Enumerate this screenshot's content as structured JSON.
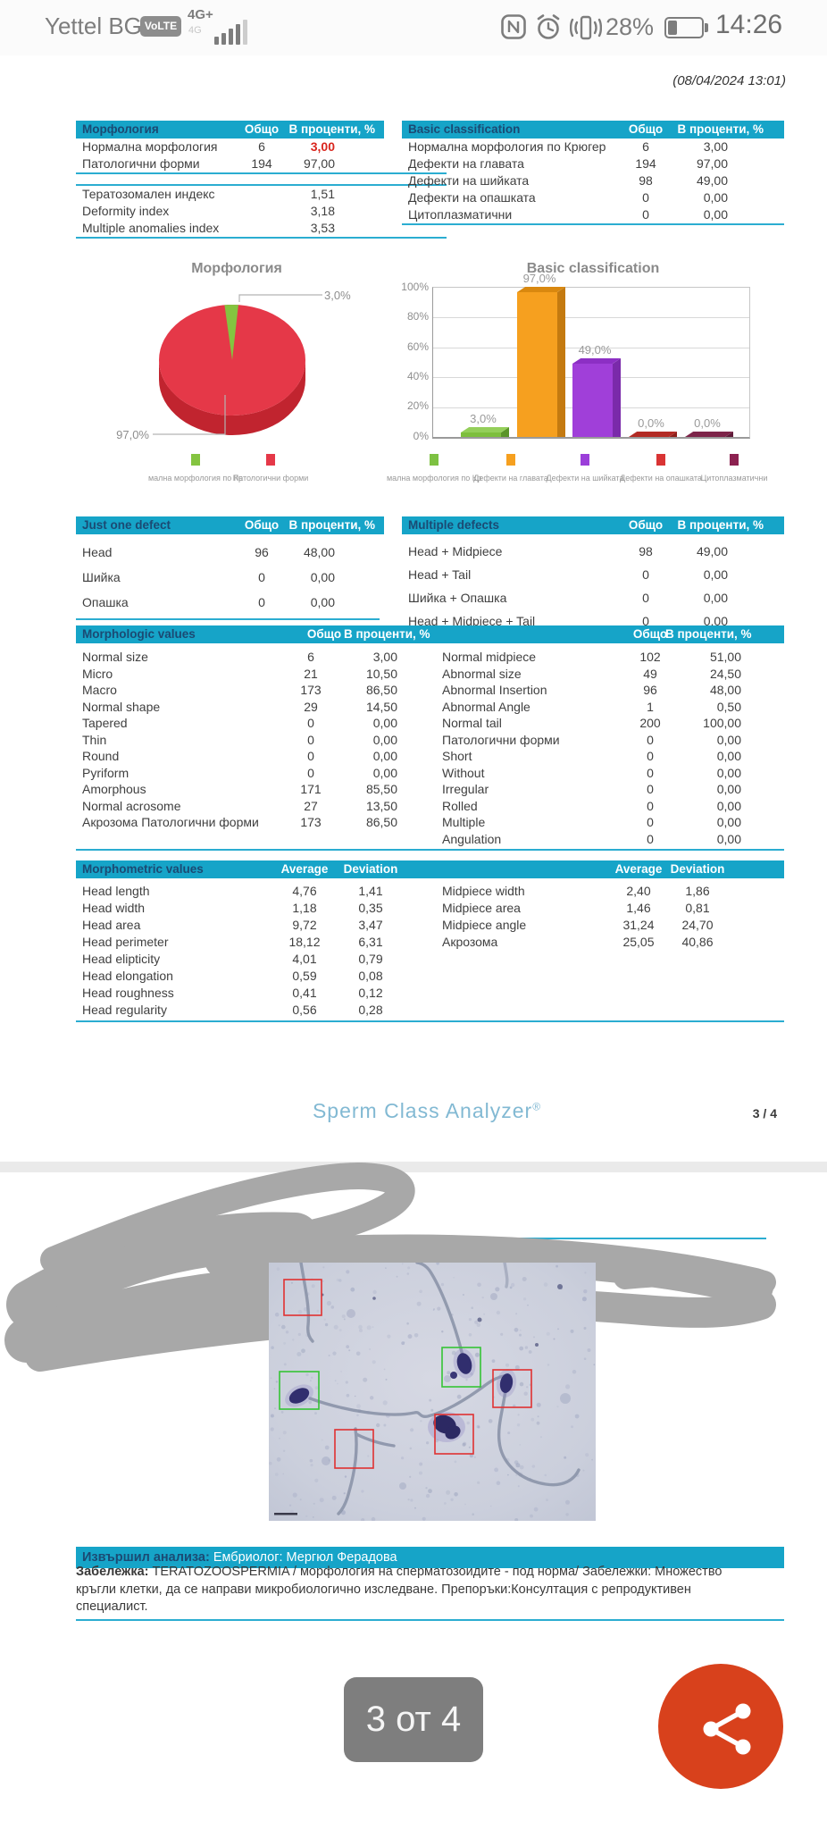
{
  "status_bar": {
    "carrier": "Yettel BG",
    "volte_badge": "VoLTE",
    "network": "4G+",
    "network_secondary": "4G",
    "battery_percent": "28%",
    "time": "14:26"
  },
  "report": {
    "datetime_stamp": "(08/04/2024  13:01)",
    "footer_brand": "Sperm Class Analyzer",
    "footer_reg": "®",
    "footer_page": "3 / 4",
    "analyst_label": "Извършил анализа:",
    "analyst_value": "Ембриолог: Мергюл Ферадова",
    "note_label": "Забележка:",
    "note_rest1": "TERATOZOOSPERMIA / морфология на сперматозоидите - под норма/ Забележки: Множество",
    "note_line2": "кръгли клетки, да се направи микробиологично изследване. Препоръки:Консултация с репродуктивен",
    "note_line3": "специалист."
  },
  "viewer": {
    "page_indicator": "3 от 4"
  },
  "tables": {
    "morphology": {
      "title": "Морфология",
      "col_total": "Общо",
      "col_pct": "В проценти, %",
      "rows": [
        {
          "label": "Нормална морфология",
          "total": "6",
          "pct": "3,00",
          "red": true
        },
        {
          "label": "Патологични форми",
          "total": "194",
          "pct": "97,00"
        }
      ],
      "indexes": [
        {
          "label": "Тератозомален индекс",
          "pct": "1,51"
        },
        {
          "label": "Deformity index",
          "pct": "3,18"
        },
        {
          "label": "Multiple anomalies index",
          "pct": "3,53"
        }
      ]
    },
    "basic_classification": {
      "title": "Basic classification",
      "col_total": "Общо",
      "col_pct": "В проценти, %",
      "rows": [
        {
          "label": "Нормална морфология по Крюгер",
          "total": "6",
          "pct": "3,00"
        },
        {
          "label": "Дефекти на главата",
          "total": "194",
          "pct": "97,00"
        },
        {
          "label": "Дефекти на шийката",
          "total": "98",
          "pct": "49,00"
        },
        {
          "label": "Дефекти на опашката",
          "total": "0",
          "pct": "0,00"
        },
        {
          "label": "Цитоплазматични",
          "total": "0",
          "pct": "0,00"
        }
      ]
    },
    "just_one_defect": {
      "title": "Just one defect",
      "col_total": "Общо",
      "col_pct": "В проценти, %",
      "rows": [
        {
          "label": "Head",
          "total": "96",
          "pct": "48,00"
        },
        {
          "label": "Шийка",
          "total": "0",
          "pct": "0,00"
        },
        {
          "label": "Опашка",
          "total": "0",
          "pct": "0,00"
        }
      ]
    },
    "multiple_defects": {
      "title": "Multiple defects",
      "col_total": "Общо",
      "col_pct": "В проценти, %",
      "rows": [
        {
          "label": "Head + Midpiece",
          "total": "98",
          "pct": "49,00"
        },
        {
          "label": "Head + Tail",
          "total": "0",
          "pct": "0,00"
        },
        {
          "label": "Шийка + Опашка",
          "total": "0",
          "pct": "0,00"
        },
        {
          "label": "Head + Midpiece + Tail",
          "total": "0",
          "pct": "0,00"
        }
      ]
    },
    "morphologic": {
      "title": "Morphologic values",
      "col_total": "Общо",
      "col_pct": "В проценти, %",
      "left_rows": [
        {
          "label": "Normal size",
          "total": "6",
          "pct": "3,00"
        },
        {
          "label": "Micro",
          "total": "21",
          "pct": "10,50"
        },
        {
          "label": "Macro",
          "total": "173",
          "pct": "86,50"
        },
        {
          "label": "Normal shape",
          "total": "29",
          "pct": "14,50"
        },
        {
          "label": "Tapered",
          "total": "0",
          "pct": "0,00"
        },
        {
          "label": "Thin",
          "total": "0",
          "pct": "0,00"
        },
        {
          "label": "Round",
          "total": "0",
          "pct": "0,00"
        },
        {
          "label": "Pyriform",
          "total": "0",
          "pct": "0,00"
        },
        {
          "label": "Amorphous",
          "total": "171",
          "pct": "85,50"
        },
        {
          "label": "Normal acrosome",
          "total": "27",
          "pct": "13,50"
        },
        {
          "label": "Акрозома Патологични форми",
          "total": "173",
          "pct": "86,50"
        }
      ],
      "right_rows": [
        {
          "label": "Normal midpiece",
          "total": "102",
          "pct": "51,00"
        },
        {
          "label": "Abnormal size",
          "total": "49",
          "pct": "24,50"
        },
        {
          "label": "Abnormal Insertion",
          "total": "96",
          "pct": "48,00"
        },
        {
          "label": "Abnormal Angle",
          "total": "1",
          "pct": "0,50"
        },
        {
          "label": "Normal tail",
          "total": "200",
          "pct": "100,00"
        },
        {
          "label": "Патологични форми",
          "total": "0",
          "pct": "0,00"
        },
        {
          "label": "Short",
          "total": "0",
          "pct": "0,00"
        },
        {
          "label": "Without",
          "total": "0",
          "pct": "0,00"
        },
        {
          "label": "Irregular",
          "total": "0",
          "pct": "0,00"
        },
        {
          "label": "Rolled",
          "total": "0",
          "pct": "0,00"
        },
        {
          "label": "Multiple",
          "total": "0",
          "pct": "0,00"
        },
        {
          "label": "Angulation",
          "total": "0",
          "pct": "0,00"
        }
      ]
    },
    "morphometric": {
      "title": "Morphometric values",
      "col_avg": "Average",
      "col_dev": "Deviation",
      "left_rows": [
        {
          "label": "Head length",
          "avg": "4,76",
          "dev": "1,41"
        },
        {
          "label": "Head width",
          "avg": "1,18",
          "dev": "0,35"
        },
        {
          "label": "Head area",
          "avg": "9,72",
          "dev": "3,47"
        },
        {
          "label": "Head perimeter",
          "avg": "18,12",
          "dev": "6,31"
        },
        {
          "label": "Head elipticity",
          "avg": "4,01",
          "dev": "0,79"
        },
        {
          "label": "Head elongation",
          "avg": "0,59",
          "dev": "0,08"
        },
        {
          "label": "Head roughness",
          "avg": "0,41",
          "dev": "0,12"
        },
        {
          "label": "Head regularity",
          "avg": "0,56",
          "dev": "0,28"
        }
      ],
      "right_rows": [
        {
          "label": "Midpiece width",
          "avg": "2,40",
          "dev": "1,86"
        },
        {
          "label": "Midpiece area",
          "avg": "1,46",
          "dev": "0,81"
        },
        {
          "label": "Midpiece angle",
          "avg": "31,24",
          "dev": "24,70"
        },
        {
          "label": "Акрозома",
          "avg": "25,05",
          "dev": "40,86"
        }
      ]
    }
  },
  "chart_data": [
    {
      "type": "pie",
      "title": "Морфология",
      "categories": [
        "Нормална морфология по Крюгер",
        "Патологични форми"
      ],
      "values": [
        3.0,
        97.0
      ],
      "value_labels": [
        "3,0%",
        "97,0%"
      ],
      "colors": [
        "#84c440",
        "#e53848"
      ],
      "side_color": "#c1242f",
      "legend_display": [
        "мална морфология по Кр",
        "Патологични форми"
      ],
      "legend_colors": [
        "#84c440",
        "#e53848"
      ],
      "legend_position": "bottom"
    },
    {
      "type": "bar",
      "title": "Basic classification",
      "categories": [
        "Нормална морфология по Крюгер",
        "Дефекти на главата",
        "Дефекти на шийката",
        "Дефекти на опашката",
        "Цитоплазматични"
      ],
      "values": [
        3.0,
        97.0,
        49.0,
        0.0,
        0.0
      ],
      "value_labels": [
        "3,0%",
        "97,0%",
        "49,0%",
        "0,0%",
        "0,0%"
      ],
      "yticks": [
        "100%",
        "80%",
        "60%",
        "40%",
        "20%",
        "0%"
      ],
      "ylim": [
        0,
        100
      ],
      "grid": true,
      "colors": [
        {
          "f": "#7dbf3d",
          "s": "#5a9428",
          "t": "#94cf5a"
        },
        {
          "f": "#f6a01f",
          "s": "#c47a10",
          "t": "#d9880f"
        },
        {
          "f": "#a03fd9",
          "s": "#7a2aaa",
          "t": "#8c2fc4"
        },
        {
          "f": "#c23028",
          "s": "#8f1f1a",
          "t": "#b22a24"
        },
        {
          "f": "#83264d",
          "s": "#5f1a38",
          "t": "#7d2449"
        }
      ],
      "legend_display": [
        "мална морфология по Кр",
        "Дефекти на главата",
        "Дефекти на шийката",
        "Дефекти на опашката",
        "Цитоплазматични"
      ],
      "legend_colors": [
        "#7dc142",
        "#f6a01f",
        "#9b3fd9",
        "#d93434",
        "#8c2150"
      ],
      "legend_position": "bottom"
    }
  ]
}
